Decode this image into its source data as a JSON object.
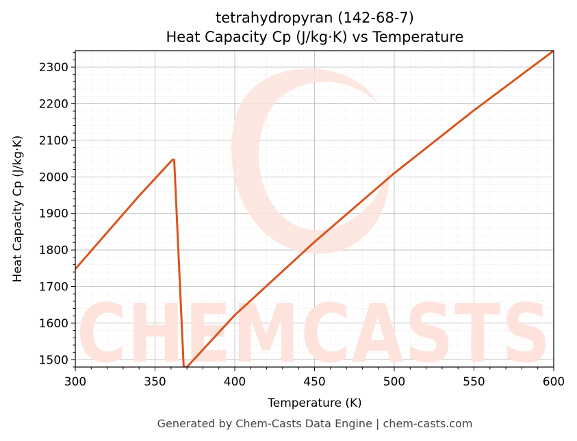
{
  "chart_data": {
    "type": "line",
    "title": "tetrahydropyran (142-68-7)",
    "subtitle": "Heat Capacity Cp (J/kg·K) vs Temperature",
    "xlabel": "Temperature (K)",
    "ylabel": "Heat Capacity Cp (J/kg·K)",
    "xlim": [
      300,
      600
    ],
    "ylim": [
      1480,
      2345
    ],
    "xticks": [
      300,
      350,
      400,
      450,
      500,
      550,
      600
    ],
    "yticks": [
      1500,
      1600,
      1700,
      1800,
      1900,
      2000,
      2100,
      2200,
      2300
    ],
    "grid": true,
    "line_color": "#d9541e",
    "series": [
      {
        "x": [
          300,
          320,
          340,
          361,
          362,
          368,
          370,
          400,
          450,
          500,
          550,
          600
        ],
        "y": [
          1748,
          1848,
          1948,
          2047,
          2047,
          1480,
          1480,
          1622,
          1822,
          2010,
          2182,
          2345
        ]
      }
    ]
  },
  "watermark": "CHEMCASTS",
  "footer": "Generated by Chem-Casts Data Engine | chem-casts.com"
}
